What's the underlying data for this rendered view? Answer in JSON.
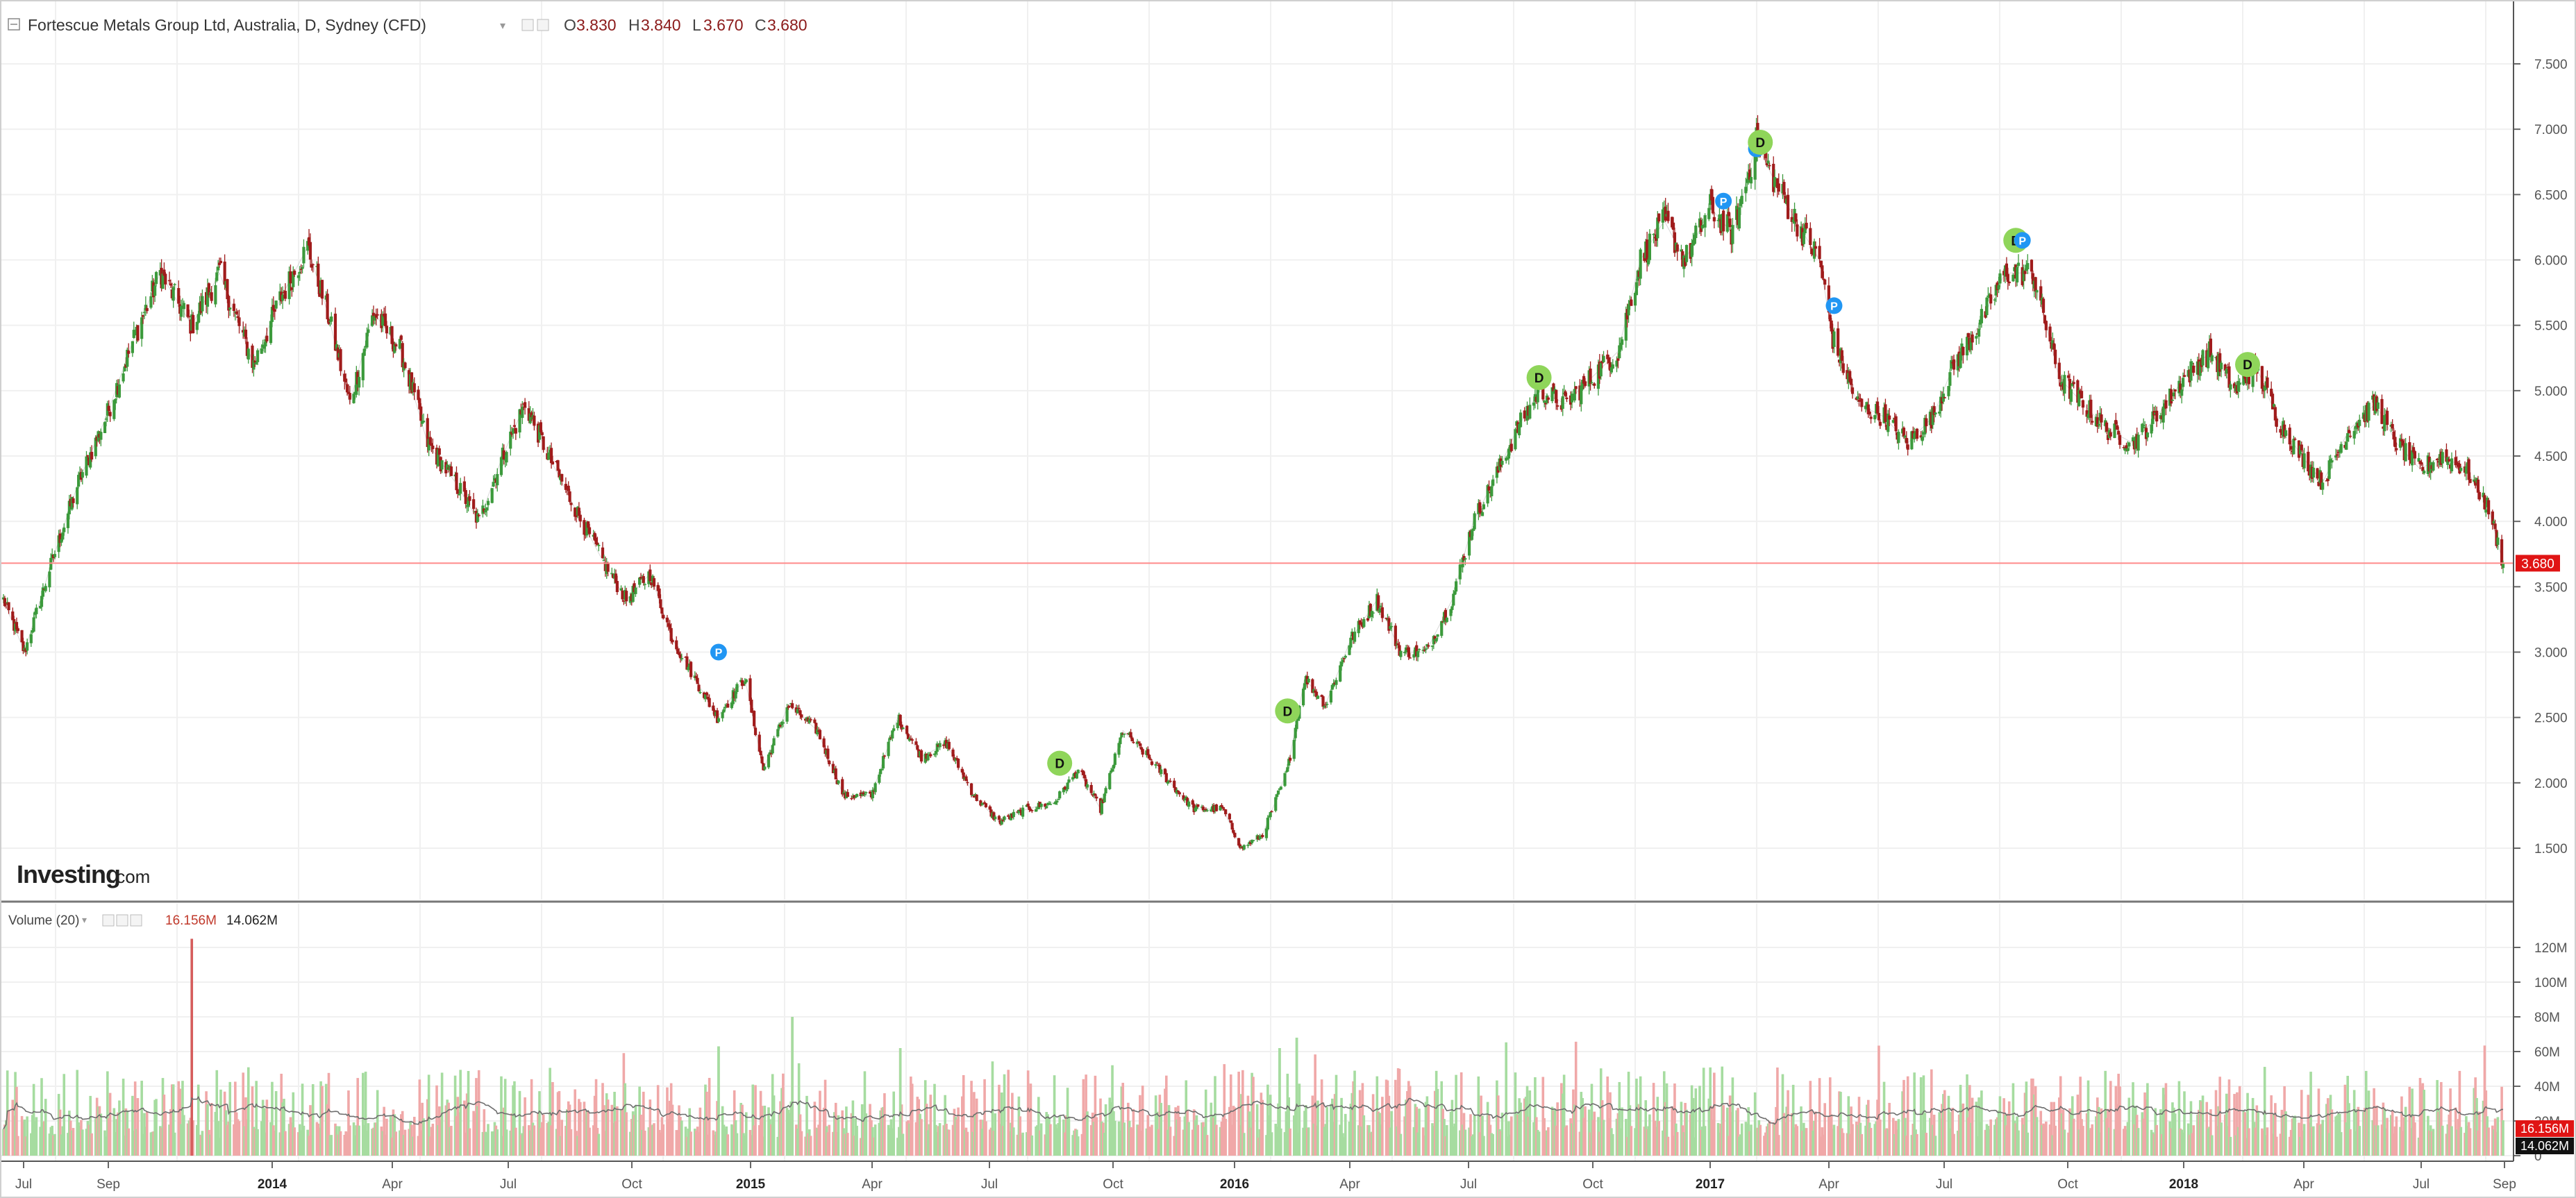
{
  "header": {
    "title": "Fortescue Metals Group Ltd, Australia, D, Sydney (CFD)",
    "ohlc": [
      {
        "key": "O",
        "value": "3.830"
      },
      {
        "key": "H",
        "value": "3.840"
      },
      {
        "key": "L",
        "value": "3.670"
      },
      {
        "key": "C",
        "value": "3.680"
      }
    ],
    "colors": {
      "ohlc_value": "#8b1a1a",
      "label": "#444444"
    }
  },
  "price_axis": {
    "ticks": [
      "7.500",
      "7.000",
      "6.500",
      "6.000",
      "5.500",
      "5.000",
      "4.500",
      "4.000",
      "3.500",
      "3.000",
      "2.500",
      "2.000",
      "1.500"
    ],
    "last_price_label": "3.680",
    "last_price": 3.68
  },
  "volume_panel": {
    "title": "Volume (20)",
    "value_1": "16.156M",
    "value_2": "14.062M",
    "ticks": [
      "120M",
      "100M",
      "80M",
      "60M",
      "40M",
      "20M",
      "0"
    ],
    "badge_1": "16.156M",
    "badge_2": "14.062M"
  },
  "x_axis": {
    "labels": [
      {
        "text": "Jul",
        "bold": false
      },
      {
        "text": "Sep",
        "bold": false
      },
      {
        "text": "2014",
        "bold": true
      },
      {
        "text": "Apr",
        "bold": false
      },
      {
        "text": "Jul",
        "bold": false
      },
      {
        "text": "Oct",
        "bold": false
      },
      {
        "text": "2015",
        "bold": true
      },
      {
        "text": "Apr",
        "bold": false
      },
      {
        "text": "Jul",
        "bold": false
      },
      {
        "text": "Oct",
        "bold": false
      },
      {
        "text": "2016",
        "bold": true
      },
      {
        "text": "Apr",
        "bold": false
      },
      {
        "text": "Jul",
        "bold": false
      },
      {
        "text": "Oct",
        "bold": false
      },
      {
        "text": "2017",
        "bold": true
      },
      {
        "text": "Apr",
        "bold": false
      },
      {
        "text": "Jul",
        "bold": false
      },
      {
        "text": "Oct",
        "bold": false
      },
      {
        "text": "2018",
        "bold": true
      },
      {
        "text": "Apr",
        "bold": false
      },
      {
        "text": "Jul",
        "bold": false
      },
      {
        "text": "Sep",
        "bold": false
      }
    ]
  },
  "watermark": {
    "brand": "Investing",
    "suffix": ".com"
  },
  "colors": {
    "up": "#3c9a3c",
    "down": "#a01c1c",
    "vol_up": "#a6dca0",
    "vol_down": "#f0a8a8",
    "price_line": "#ff8a8a",
    "badge_red": "#e01414",
    "marker_dividend": "#8fd55a",
    "marker_p": "#2196f3",
    "grid": "#f0f0f0"
  },
  "chart_data": [
    {
      "type": "line",
      "title": "Fortescue Metals Group Ltd, Australia, D, Sydney (CFD)",
      "note": "approximate daily closing prices, read off the price axis",
      "ylim": [
        1.2,
        7.8
      ],
      "series": [
        {
          "points": [
            [
              "2013-06-24",
              3.4
            ],
            [
              "2013-07-10",
              3.0
            ],
            [
              "2013-07-31",
              3.7
            ],
            [
              "2013-08-20",
              4.3
            ],
            [
              "2013-09-10",
              4.8
            ],
            [
              "2013-10-01",
              5.4
            ],
            [
              "2013-10-21",
              5.9
            ],
            [
              "2013-11-14",
              5.5
            ],
            [
              "2013-12-05",
              5.9
            ],
            [
              "2013-12-31",
              5.2
            ],
            [
              "2014-01-20",
              5.7
            ],
            [
              "2014-02-10",
              6.1
            ],
            [
              "2014-02-25",
              5.6
            ],
            [
              "2014-03-14",
              4.9
            ],
            [
              "2014-04-01",
              5.6
            ],
            [
              "2014-04-22",
              5.3
            ],
            [
              "2014-05-12",
              4.6
            ],
            [
              "2014-06-02",
              4.3
            ],
            [
              "2014-06-20",
              4.0
            ],
            [
              "2014-07-08",
              4.5
            ],
            [
              "2014-07-25",
              4.9
            ],
            [
              "2014-08-12",
              4.5
            ],
            [
              "2014-09-01",
              4.1
            ],
            [
              "2014-09-22",
              3.7
            ],
            [
              "2014-10-10",
              3.4
            ],
            [
              "2014-10-28",
              3.6
            ],
            [
              "2014-11-14",
              3.1
            ],
            [
              "2014-12-01",
              2.8
            ],
            [
              "2014-12-18",
              2.5
            ],
            [
              "2015-01-08",
              2.8
            ],
            [
              "2015-01-22",
              2.1
            ],
            [
              "2015-02-10",
              2.6
            ],
            [
              "2015-03-04",
              2.4
            ],
            [
              "2015-03-24",
              1.9
            ],
            [
              "2015-04-14",
              1.9
            ],
            [
              "2015-05-04",
              2.5
            ],
            [
              "2015-05-22",
              2.2
            ],
            [
              "2015-06-10",
              2.3
            ],
            [
              "2015-07-01",
              1.9
            ],
            [
              "2015-07-20",
              1.7
            ],
            [
              "2015-08-10",
              1.8
            ],
            [
              "2015-08-31",
              1.85
            ],
            [
              "2015-09-18",
              2.1
            ],
            [
              "2015-10-05",
              1.8
            ],
            [
              "2015-10-22",
              2.4
            ],
            [
              "2015-11-10",
              2.2
            ],
            [
              "2015-11-27",
              2.0
            ],
            [
              "2015-12-15",
              1.8
            ],
            [
              "2016-01-06",
              1.8
            ],
            [
              "2016-01-20",
              1.5
            ],
            [
              "2016-02-05",
              1.6
            ],
            [
              "2016-02-24",
              2.1
            ],
            [
              "2016-03-08",
              2.8
            ],
            [
              "2016-03-24",
              2.6
            ],
            [
              "2016-04-12",
              3.1
            ],
            [
              "2016-05-02",
              3.4
            ],
            [
              "2016-05-20",
              3.0
            ],
            [
              "2016-06-08",
              3.0
            ],
            [
              "2016-06-28",
              3.4
            ],
            [
              "2016-07-14",
              4.0
            ],
            [
              "2016-07-29",
              4.3
            ],
            [
              "2016-08-16",
              4.7
            ],
            [
              "2016-09-02",
              5.0
            ],
            [
              "2016-09-22",
              4.9
            ],
            [
              "2016-10-12",
              5.1
            ],
            [
              "2016-11-01",
              5.3
            ],
            [
              "2016-11-18",
              6.0
            ],
            [
              "2016-12-06",
              6.3
            ],
            [
              "2016-12-22",
              6.0
            ],
            [
              "2017-01-10",
              6.4
            ],
            [
              "2017-01-27",
              6.2
            ],
            [
              "2017-02-14",
              6.9
            ],
            [
              "2017-02-28",
              6.6
            ],
            [
              "2017-03-16",
              6.3
            ],
            [
              "2017-04-03",
              6.0
            ],
            [
              "2017-04-13",
              5.4
            ],
            [
              "2017-05-02",
              4.9
            ],
            [
              "2017-05-22",
              4.8
            ],
            [
              "2017-06-09",
              4.6
            ],
            [
              "2017-06-28",
              4.8
            ],
            [
              "2017-07-14",
              5.2
            ],
            [
              "2017-08-02",
              5.5
            ],
            [
              "2017-08-22",
              5.9
            ],
            [
              "2017-09-12",
              5.9
            ],
            [
              "2017-10-02",
              5.1
            ],
            [
              "2017-10-20",
              4.9
            ],
            [
              "2017-11-08",
              4.7
            ],
            [
              "2017-11-27",
              4.6
            ],
            [
              "2017-12-15",
              4.8
            ],
            [
              "2018-01-05",
              5.1
            ],
            [
              "2018-01-25",
              5.3
            ],
            [
              "2018-02-13",
              5.0
            ],
            [
              "2018-02-28",
              5.2
            ],
            [
              "2018-03-16",
              4.8
            ],
            [
              "2018-04-04",
              4.5
            ],
            [
              "2018-04-20",
              4.3
            ],
            [
              "2018-05-10",
              4.7
            ],
            [
              "2018-05-30",
              4.9
            ],
            [
              "2018-06-15",
              4.6
            ],
            [
              "2018-07-03",
              4.4
            ],
            [
              "2018-07-20",
              4.5
            ],
            [
              "2018-08-07",
              4.4
            ],
            [
              "2018-08-24",
              4.1
            ],
            [
              "2018-09-04",
              3.68
            ]
          ]
        }
      ],
      "markers": [
        {
          "letter": "P",
          "date": "2014-12-19",
          "price": 3.0
        },
        {
          "letter": "D",
          "date": "2015-09-04",
          "price": 2.15
        },
        {
          "letter": "D",
          "date": "2016-02-24",
          "price": 2.55
        },
        {
          "letter": "D",
          "date": "2016-09-02",
          "price": 5.1
        },
        {
          "letter": "P",
          "date": "2017-01-20",
          "price": 6.45
        },
        {
          "letter": "P",
          "date": "2017-02-14",
          "price": 6.85
        },
        {
          "letter": "D",
          "date": "2017-02-17",
          "price": 6.9
        },
        {
          "letter": "P",
          "date": "2017-04-14",
          "price": 5.65
        },
        {
          "letter": "D",
          "date": "2017-08-30",
          "price": 6.15
        },
        {
          "letter": "P",
          "date": "2017-09-04",
          "price": 6.15
        },
        {
          "letter": "D",
          "date": "2018-02-22",
          "price": 5.2
        }
      ]
    },
    {
      "type": "bar",
      "title": "Volume (20)",
      "ylim": [
        0,
        130000000
      ],
      "note": "approximate daily volume (shares); a moving-average line follows these bars",
      "spikes": [
        {
          "date": "2013-11-14",
          "value": 125000000
        },
        {
          "date": "2014-12-19",
          "value": 63000000
        },
        {
          "date": "2015-02-13",
          "value": 80000000
        },
        {
          "date": "2015-05-06",
          "value": 62000000
        },
        {
          "date": "2016-03-02",
          "value": 68000000
        },
        {
          "date": "2016-02-18",
          "value": 62000000
        }
      ],
      "typical_range": [
        10000000,
        45000000
      ],
      "last": [
        {
          "label": "volume",
          "value": 16156000
        },
        {
          "label": "moving average",
          "value": 14062000
        }
      ]
    }
  ]
}
